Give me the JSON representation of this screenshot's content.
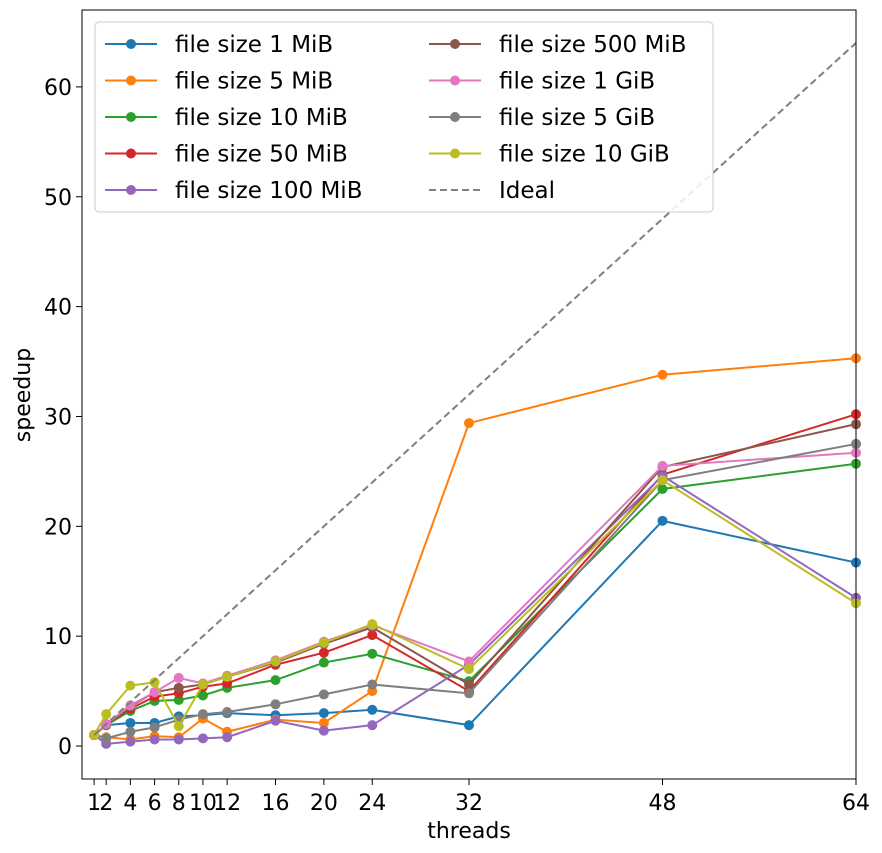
{
  "chart_data": {
    "type": "line",
    "xlabel": "threads",
    "ylabel": "speedup",
    "xlim": [
      0,
      64
    ],
    "ylim": [
      -3,
      67
    ],
    "x_ticks": [
      1,
      2,
      4,
      6,
      8,
      10,
      12,
      16,
      20,
      24,
      32,
      48,
      64
    ],
    "y_ticks": [
      0,
      10,
      20,
      30,
      40,
      50,
      60
    ],
    "legend_position": "top-left",
    "legend_columns": 2,
    "grid": false,
    "x": [
      1,
      2,
      4,
      6,
      8,
      10,
      12,
      16,
      20,
      24,
      32,
      48,
      64
    ],
    "series": [
      {
        "name": "file size 1 MiB",
        "color": "#1f77b4",
        "marker": "circle",
        "values": [
          1.0,
          1.9,
          2.1,
          2.1,
          2.7,
          2.8,
          3.0,
          2.8,
          3.0,
          3.3,
          1.9,
          20.5,
          16.7
        ]
      },
      {
        "name": "file size 5 MiB",
        "color": "#ff7f0e",
        "marker": "circle",
        "values": [
          1.0,
          0.8,
          0.6,
          0.9,
          0.8,
          2.5,
          1.3,
          2.4,
          2.1,
          5.0,
          29.4,
          33.8,
          35.3
        ]
      },
      {
        "name": "file size 10 MiB",
        "color": "#2ca02c",
        "marker": "circle",
        "values": [
          1.0,
          1.9,
          3.2,
          4.1,
          4.2,
          4.6,
          5.3,
          6.0,
          7.6,
          8.4,
          5.9,
          23.4,
          25.7
        ]
      },
      {
        "name": "file size 50 MiB",
        "color": "#d62728",
        "marker": "circle",
        "values": [
          1.0,
          2.0,
          3.4,
          4.5,
          4.8,
          5.4,
          5.7,
          7.4,
          8.5,
          10.1,
          5.0,
          24.7,
          30.2
        ]
      },
      {
        "name": "file size 100 MiB",
        "color": "#9467bd",
        "marker": "circle",
        "values": [
          1.0,
          0.2,
          0.4,
          0.6,
          0.6,
          0.7,
          0.8,
          2.3,
          1.4,
          1.9,
          7.4,
          24.6,
          13.5
        ]
      },
      {
        "name": "file size 500 MiB",
        "color": "#8c564b",
        "marker": "circle",
        "values": [
          1.0,
          2.0,
          3.6,
          4.9,
          5.3,
          5.6,
          6.3,
          7.6,
          9.3,
          10.8,
          5.6,
          25.4,
          29.3
        ]
      },
      {
        "name": "file size 1 GiB",
        "color": "#e377c2",
        "marker": "circle",
        "values": [
          1.0,
          2.0,
          3.7,
          4.9,
          6.2,
          5.7,
          6.4,
          7.8,
          9.5,
          11.0,
          7.7,
          25.5,
          26.7
        ]
      },
      {
        "name": "file size 5 GiB",
        "color": "#7f7f7f",
        "marker": "circle",
        "values": [
          1.0,
          0.7,
          1.3,
          1.7,
          2.4,
          2.9,
          3.1,
          3.8,
          4.7,
          5.6,
          4.8,
          24.2,
          27.5
        ]
      },
      {
        "name": "file size 10 GiB",
        "color": "#bcbd22",
        "marker": "circle",
        "values": [
          1.0,
          2.9,
          5.5,
          5.8,
          1.8,
          5.6,
          6.3,
          7.7,
          9.4,
          11.1,
          7.0,
          24.2,
          13.0
        ]
      },
      {
        "name": "Ideal",
        "color": "#7f7f7f",
        "dashed": true,
        "marker": "none",
        "x": [
          1,
          64
        ],
        "values": [
          1,
          64
        ]
      }
    ]
  }
}
